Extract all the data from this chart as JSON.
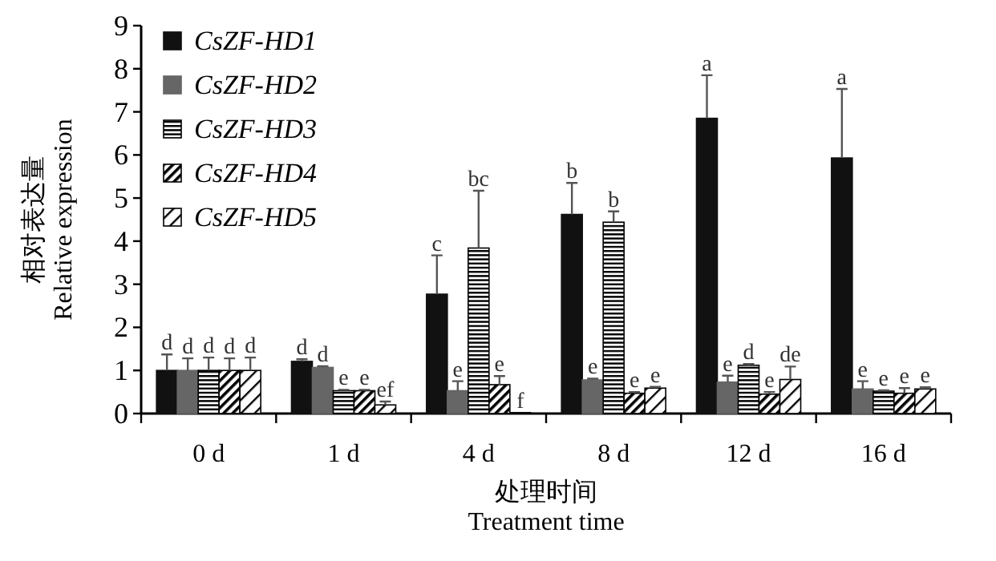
{
  "chart_data": {
    "type": "bar",
    "xlabel": "处理时间\nTreatment time",
    "ylabel": "相对表达量\nRelative expression",
    "categories": [
      "0 d",
      "1 d",
      "4 d",
      "8 d",
      "12 d",
      "16 d"
    ],
    "ylim": [
      0,
      9
    ],
    "yticks": [
      0,
      1,
      2,
      3,
      4,
      5,
      6,
      7,
      8,
      9
    ],
    "grid": false,
    "legend": "top left",
    "series": [
      {
        "name": "CsZF-HD1",
        "color": "#111111",
        "values": [
          1.0,
          1.21,
          2.77,
          4.62,
          6.85,
          5.93
        ],
        "errors": [
          [
            1.0,
            1.37
          ],
          [
            1.21,
            1.26
          ],
          [
            2.77,
            3.67
          ],
          [
            4.62,
            5.35
          ],
          [
            6.85,
            7.85
          ],
          [
            5.93,
            7.53
          ]
        ],
        "value_labels": [
          "d",
          "d",
          "c",
          "b",
          "a",
          "a"
        ]
      },
      {
        "name": "CsZF-HD2",
        "color": "#666666",
        "values": [
          1.0,
          1.07,
          0.53,
          0.78,
          0.73,
          0.57
        ],
        "errors": [
          [
            1.0,
            1.28
          ],
          [
            1.07,
            1.1
          ],
          [
            0.53,
            0.75
          ],
          [
            0.78,
            0.81
          ],
          [
            0.73,
            0.88
          ],
          [
            0.57,
            0.75
          ]
        ],
        "value_labels": [
          "d",
          "d",
          "e",
          "e",
          "e",
          "e"
        ]
      },
      {
        "name": "CsZF-HD3",
        "color": "#000000",
        "values": [
          1.0,
          0.53,
          3.84,
          4.44,
          1.12,
          0.52
        ],
        "errors": [
          [
            1.0,
            1.3
          ],
          [
            0.53,
            0.55
          ],
          [
            3.84,
            5.17
          ],
          [
            4.44,
            4.69
          ],
          [
            1.12,
            1.15
          ],
          [
            0.52,
            0.54
          ]
        ],
        "value_labels": [
          "d",
          "e",
          "bc",
          "b",
          "d",
          "e"
        ]
      },
      {
        "name": "CsZF-HD4",
        "color": "#000000",
        "values": [
          1.0,
          0.53,
          0.67,
          0.47,
          0.45,
          0.47
        ],
        "errors": [
          [
            1.0,
            1.28
          ],
          [
            0.53,
            0.55
          ],
          [
            0.67,
            0.87
          ],
          [
            0.47,
            0.5
          ],
          [
            0.45,
            0.5
          ],
          [
            0.47,
            0.59
          ]
        ],
        "value_labels": [
          "d",
          "e",
          "e",
          "e",
          "e",
          "e"
        ]
      },
      {
        "name": "CsZF-HD5",
        "color": "#000000",
        "values": [
          1.0,
          0.2,
          0.02,
          0.59,
          0.79,
          0.57
        ],
        "errors": [
          [
            1.0,
            1.3
          ],
          [
            0.2,
            0.28
          ],
          null,
          [
            0.59,
            0.62
          ],
          [
            0.79,
            1.09
          ],
          [
            0.57,
            0.61
          ]
        ],
        "value_labels": [
          "d",
          "ef",
          "f",
          "e",
          "de",
          "e"
        ]
      }
    ]
  }
}
